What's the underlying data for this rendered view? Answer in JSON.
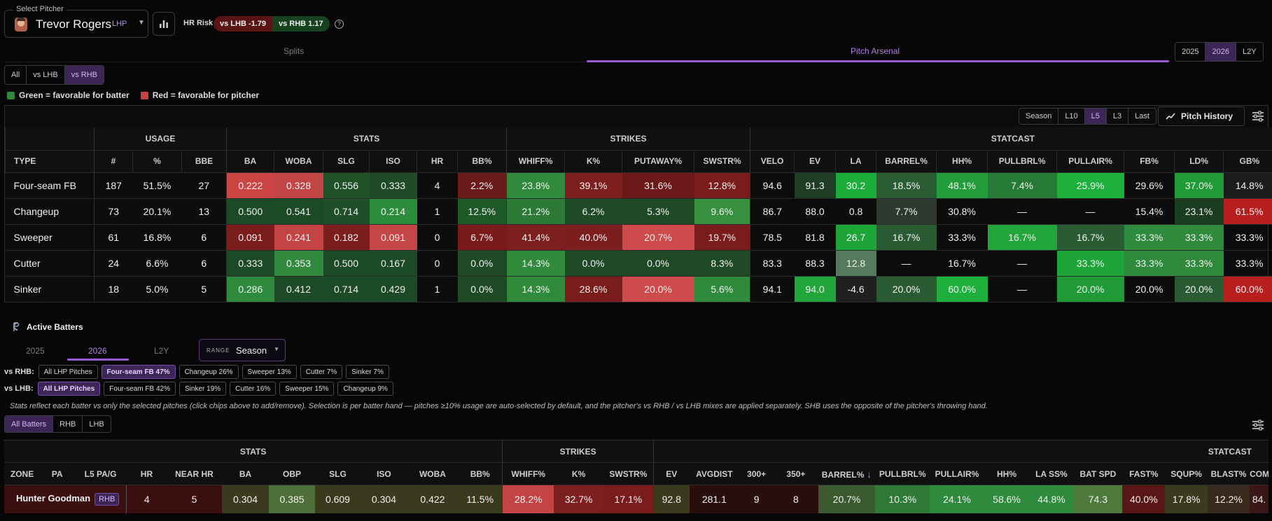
{
  "header": {
    "select_label": "Select Pitcher",
    "pitcher_name": "Trevor Rogers",
    "hand": "LHP",
    "hr_risk_label": "HR Risk",
    "vs_lhb": "vs LHB -1.79",
    "vs_rhb": "vs RHB 1.17",
    "help": "?"
  },
  "tabs": {
    "splits": "Splits",
    "arsenal": "Pitch Arsenal"
  },
  "years": [
    "2025",
    "2026",
    "L2Y"
  ],
  "splits": [
    "All",
    "vs LHB",
    "vs RHB"
  ],
  "legend": {
    "green": "Green = favorable for batter",
    "red": "Red = favorable for pitcher"
  },
  "range_buttons": [
    "Season",
    "L10",
    "L5",
    "L3",
    "Last"
  ],
  "pitch_history": "Pitch History",
  "arsenal": {
    "groups": [
      "USAGE",
      "STATS",
      "STRIKES",
      "STATCAST"
    ],
    "columns": [
      "TYPE",
      "#",
      "%",
      "BBE",
      "BA",
      "WOBA",
      "SLG",
      "ISO",
      "HR",
      "BB%",
      "WHIFF%",
      "K%",
      "PUTAWAY%",
      "SWSTR%",
      "VELO",
      "EV",
      "LA",
      "BARREL%",
      "HH%",
      "PULLBRL%",
      "PULLAIR%",
      "FB%",
      "LD%",
      "GB%"
    ],
    "rows": [
      [
        "Four-seam FB",
        "187",
        "51.5%",
        "27",
        "0.222",
        "0.328",
        "0.556",
        "0.333",
        "4",
        "2.2%",
        "23.8%",
        "39.1%",
        "31.6%",
        "12.8%",
        "94.6",
        "91.3",
        "30.2",
        "18.5%",
        "48.1%",
        "7.4%",
        "25.9%",
        "29.6%",
        "37.0%",
        "14.8%"
      ],
      [
        "Changeup",
        "73",
        "20.1%",
        "13",
        "0.500",
        "0.541",
        "0.714",
        "0.214",
        "1",
        "12.5%",
        "21.2%",
        "6.2%",
        "5.3%",
        "9.6%",
        "86.7",
        "88.0",
        "0.8",
        "7.7%",
        "30.8%",
        "—",
        "—",
        "15.4%",
        "23.1%",
        "61.5%"
      ],
      [
        "Sweeper",
        "61",
        "16.8%",
        "6",
        "0.091",
        "0.241",
        "0.182",
        "0.091",
        "0",
        "6.7%",
        "41.4%",
        "40.0%",
        "20.7%",
        "19.7%",
        "78.5",
        "81.8",
        "26.7",
        "16.7%",
        "33.3%",
        "16.7%",
        "16.7%",
        "33.3%",
        "33.3%",
        "33.3%"
      ],
      [
        "Cutter",
        "24",
        "6.6%",
        "6",
        "0.333",
        "0.353",
        "0.500",
        "0.167",
        "0",
        "0.0%",
        "14.3%",
        "0.0%",
        "0.0%",
        "8.3%",
        "83.3",
        "88.3",
        "12.8",
        "—",
        "16.7%",
        "—",
        "33.3%",
        "33.3%",
        "33.3%",
        "33.3%"
      ],
      [
        "Sinker",
        "18",
        "5.0%",
        "5",
        "0.286",
        "0.412",
        "0.714",
        "0.429",
        "1",
        "0.0%",
        "14.3%",
        "28.6%",
        "20.0%",
        "5.6%",
        "94.1",
        "94.0",
        "-4.6",
        "20.0%",
        "60.0%",
        "—",
        "20.0%",
        "20.0%",
        "20.0%",
        "60.0%"
      ]
    ],
    "colors": [
      [
        "",
        "",
        "",
        "",
        "#cc4545",
        "#c24444",
        "#1f5129",
        "#1e4a26",
        "",
        "#6b1a1a",
        "#2f8a3d",
        "#7e1f1f",
        "#6b1818",
        "#7a1c1c",
        "",
        "#1f3d24",
        "#1cad3a",
        "#2a5d33",
        "#239c3c",
        "#277a36",
        "#1eb03c",
        "",
        "#1f9a36",
        "#1c1c1c"
      ],
      [
        "",
        "",
        "",
        "",
        "#1d4a26",
        "#1b4a25",
        "#1e4f28",
        "#2e8c3d",
        "",
        "#1e5a28",
        "#2d7a38",
        "#1e4a26",
        "#1e4a26",
        "#37903f",
        "",
        "",
        "",
        "#2c3a30",
        "",
        "",
        "",
        "",
        "#1b3d22",
        "#b81e1e"
      ],
      [
        "",
        "",
        "",
        "",
        "#7b1d1d",
        "#c44343",
        "#7d1e1e",
        "#c44646",
        "",
        "#7a1a1a",
        "#7e1f1f",
        "#7d1e1e",
        "#cd4b4b",
        "#7b1c1c",
        "",
        "",
        "#1ea538",
        "#2a5c33",
        "",
        "#22a63c",
        "#2a5c33",
        "#2e8b3d",
        "#2f8a3c",
        ""
      ],
      [
        "",
        "",
        "",
        "",
        "#1d4a26",
        "#318a3d",
        "#1d4a26",
        "#1d4a26",
        "",
        "#1e4a26",
        "#2f8a3c",
        "#1e4a26",
        "#1e4a26",
        "#1e4a26",
        "",
        "",
        "#557a5d",
        "",
        "",
        "",
        "#1ea538",
        "#2e8b3d",
        "#2f8a3c",
        ""
      ],
      [
        "",
        "",
        "",
        "",
        "#2e8a3c",
        "#1d4a26",
        "#1d4a26",
        "#1d4a26",
        "",
        "#1e4a26",
        "#2f8a3c",
        "#7b1c1c",
        "#cd4b4b",
        "#2e8a3c",
        "",
        "#22a63c",
        "#202020",
        "#2a5c33",
        "#1eb03c",
        "",
        "#1f9a36",
        "",
        "#2a5c33",
        "#b81e1e"
      ]
    ]
  },
  "active": {
    "title": "Active Batters",
    "years": [
      "2025",
      "2026",
      "L2Y"
    ],
    "range_key": "RANGE",
    "range_value": "Season",
    "vs_rhb_label": "vs RHB:",
    "vs_rhb_chips": [
      "All LHP Pitches",
      "Four-seam FB 47%",
      "Changeup 26%",
      "Sweeper 13%",
      "Cutter 7%",
      "Sinker 7%"
    ],
    "vs_lhb_label": "vs LHB:",
    "vs_lhb_chips": [
      "All LHP Pitches",
      "Four-seam FB 42%",
      "Sinker 19%",
      "Cutter 16%",
      "Sweeper 15%",
      "Changeup 9%"
    ],
    "note": "Stats reflect each batter vs only the selected pitches (click chips above to add/remove). Selection is per batter hand — pitches ≥10% usage are auto-selected by default, and the pitcher's vs RHB / vs LHB mixes are applied separately. SHB uses the opposite of the pitcher's throwing hand.",
    "filters": [
      "All Batters",
      "RHB",
      "LHB"
    ]
  },
  "batters": {
    "groups": [
      "STATS",
      "STRIKES",
      "STATCAST"
    ],
    "columns": [
      "ZONE",
      "PA",
      "L5 PA/G",
      "HR",
      "NEAR HR",
      "BA",
      "OBP",
      "SLG",
      "ISO",
      "WOBA",
      "BB%",
      "WHIFF%",
      "K%",
      "SWSTR%",
      "EV",
      "AVGDIST",
      "300+",
      "350+",
      "BARREL%",
      "PULLBRL%",
      "PULLAIR%",
      "HH%",
      "LA SS%",
      "BAT SPD",
      "FAST%",
      "SQUP%",
      "BLAST%",
      "COM"
    ],
    "row": {
      "name": "Hunter Goodman",
      "hand": "RHB",
      "values": [
        "4",
        "5",
        "0.304",
        "0.385",
        "0.609",
        "0.304",
        "0.422",
        "11.5%",
        "28.2%",
        "32.7%",
        "17.1%",
        "92.8",
        "281.1",
        "9",
        "8",
        "20.7%",
        "10.3%",
        "24.1%",
        "58.6%",
        "44.8%",
        "74.3",
        "40.0%",
        "17.8%",
        "12.2%",
        "84."
      ],
      "colors": [
        "#3b0f0f",
        "#3b0f0f",
        "#3a3a1e",
        "#4f6f39",
        "#3a3a1e",
        "#3a3a1e",
        "#3a3a1e",
        "#3a3a1e",
        "#c44444",
        "#7e1f1f",
        "#7a1c1c",
        "#3b3a1e",
        "#2a0e0e",
        "#2a0e0e",
        "#2a0e0e",
        "#3b5a30",
        "#2f7a37",
        "#2e8a3c",
        "#2e8a3c",
        "#2e8a3c",
        "#4d7a3c",
        "#5a1616",
        "#3a3a1e",
        "#3a2a1e",
        "#3a1616"
      ]
    }
  },
  "colors": {
    "accent": "#9a5ad6",
    "green": "#2e8a3c",
    "red": "#c44444"
  }
}
